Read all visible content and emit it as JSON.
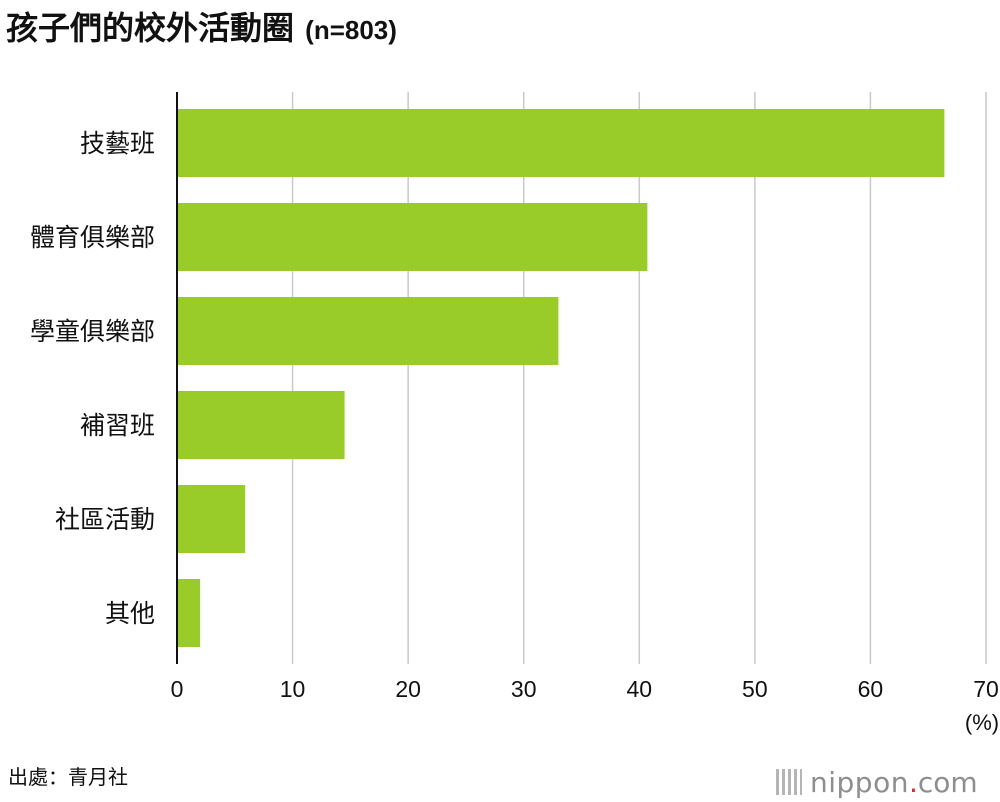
{
  "header": {
    "title": "孩子們的校外活動圈",
    "sample_size": "(n=803)"
  },
  "chart_data": {
    "type": "bar",
    "orientation": "horizontal",
    "title": "孩子們的校外活動圈",
    "subtitle": "(n=803)",
    "categories": [
      "技藝班",
      "體育俱樂部",
      "學童俱樂部",
      "補習班",
      "社區活動",
      "其他"
    ],
    "values": [
      66.4,
      40.7,
      33.0,
      14.5,
      5.9,
      2.0
    ],
    "xlabel": "",
    "ylabel": "",
    "unit": "(%)",
    "xlim": [
      0,
      70
    ],
    "xticks": [
      0,
      10,
      20,
      30,
      40,
      50,
      60,
      70
    ],
    "grid": true,
    "legend": "none",
    "bar_color": "#99cc29"
  },
  "footer": {
    "source": "出處：青月社",
    "brand_name": "nippon",
    "brand_dot": ".",
    "brand_tld": "com",
    "brand_mark_icon": "barcode-lines-icon"
  },
  "colors": {
    "bar": "#99cc29",
    "grid": "#c9c9c9",
    "axis": "#111111",
    "brand_dot": "#e0262e",
    "brand_text": "#8e8e8e"
  }
}
